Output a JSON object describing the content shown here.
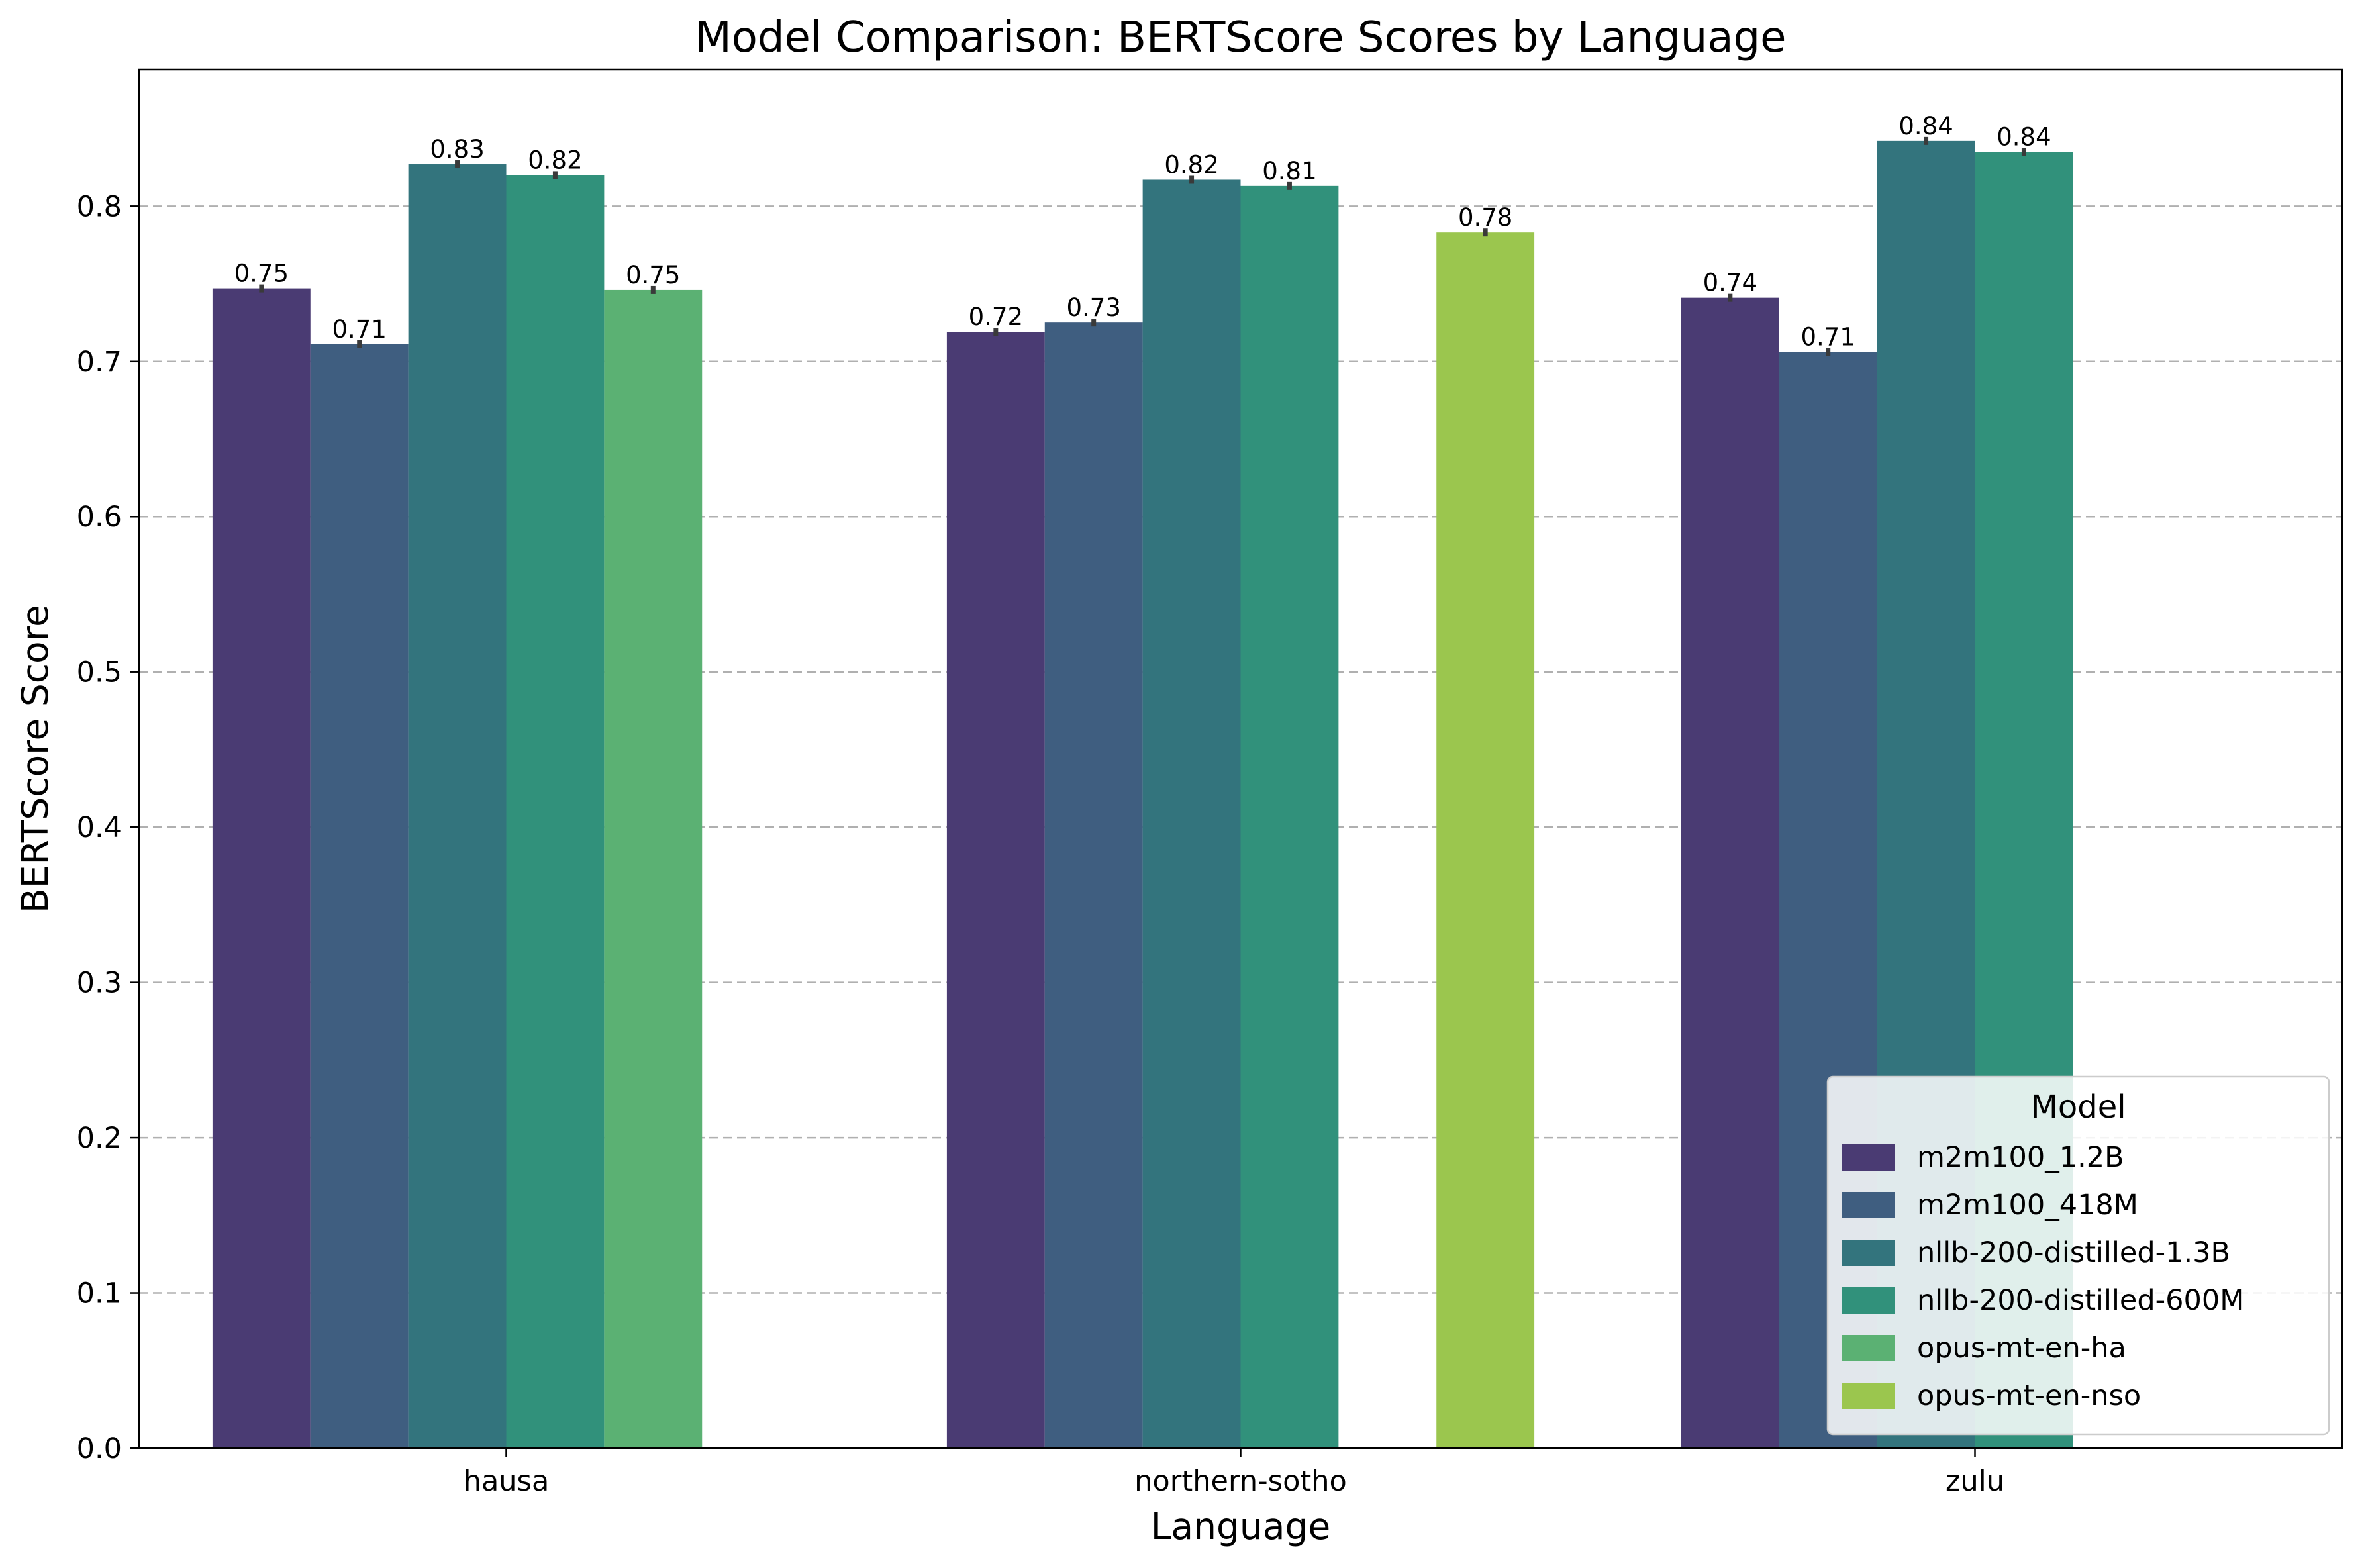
{
  "chart_data": {
    "type": "bar",
    "title": "Model Comparison: BERTScore Scores by Language",
    "xlabel": "Language",
    "ylabel": "BERTScore Score",
    "ylim": [
      0,
      0.888
    ],
    "yticks": [
      0.0,
      0.1,
      0.2,
      0.3,
      0.4,
      0.5,
      0.6,
      0.7,
      0.8
    ],
    "ytick_labels": [
      "0.0",
      "0.1",
      "0.2",
      "0.3",
      "0.4",
      "0.5",
      "0.6",
      "0.7",
      "0.8"
    ],
    "grid": "y-dashed",
    "categories": [
      "hausa",
      "northern-sotho",
      "zulu"
    ],
    "legend": {
      "title": "Model",
      "placement": "lower-right"
    },
    "series": [
      {
        "name": "m2m100_1.2B",
        "color": "#4a3b73",
        "values": [
          0.747,
          0.719,
          0.741
        ],
        "labels": [
          "0.75",
          "0.72",
          "0.74"
        ]
      },
      {
        "name": "m2m100_418M",
        "color": "#3f5e80",
        "values": [
          0.711,
          0.725,
          0.706
        ],
        "labels": [
          "0.71",
          "0.73",
          "0.71"
        ]
      },
      {
        "name": "nllb-200-distilled-1.3B",
        "color": "#33747d",
        "values": [
          0.827,
          0.817,
          0.842
        ],
        "labels": [
          "0.83",
          "0.82",
          "0.84"
        ]
      },
      {
        "name": "nllb-200-distilled-600M",
        "color": "#31917b",
        "values": [
          0.82,
          0.813,
          0.835
        ],
        "labels": [
          "0.82",
          "0.81",
          "0.84"
        ]
      },
      {
        "name": "opus-mt-en-ha",
        "color": "#5bb173",
        "values": [
          0.746,
          null,
          null
        ],
        "labels": [
          "0.75",
          null,
          null
        ]
      },
      {
        "name": "opus-mt-en-nso",
        "color": "#9bc64e",
        "values": [
          null,
          0.783,
          null
        ],
        "labels": [
          null,
          "0.78",
          null
        ]
      }
    ]
  }
}
